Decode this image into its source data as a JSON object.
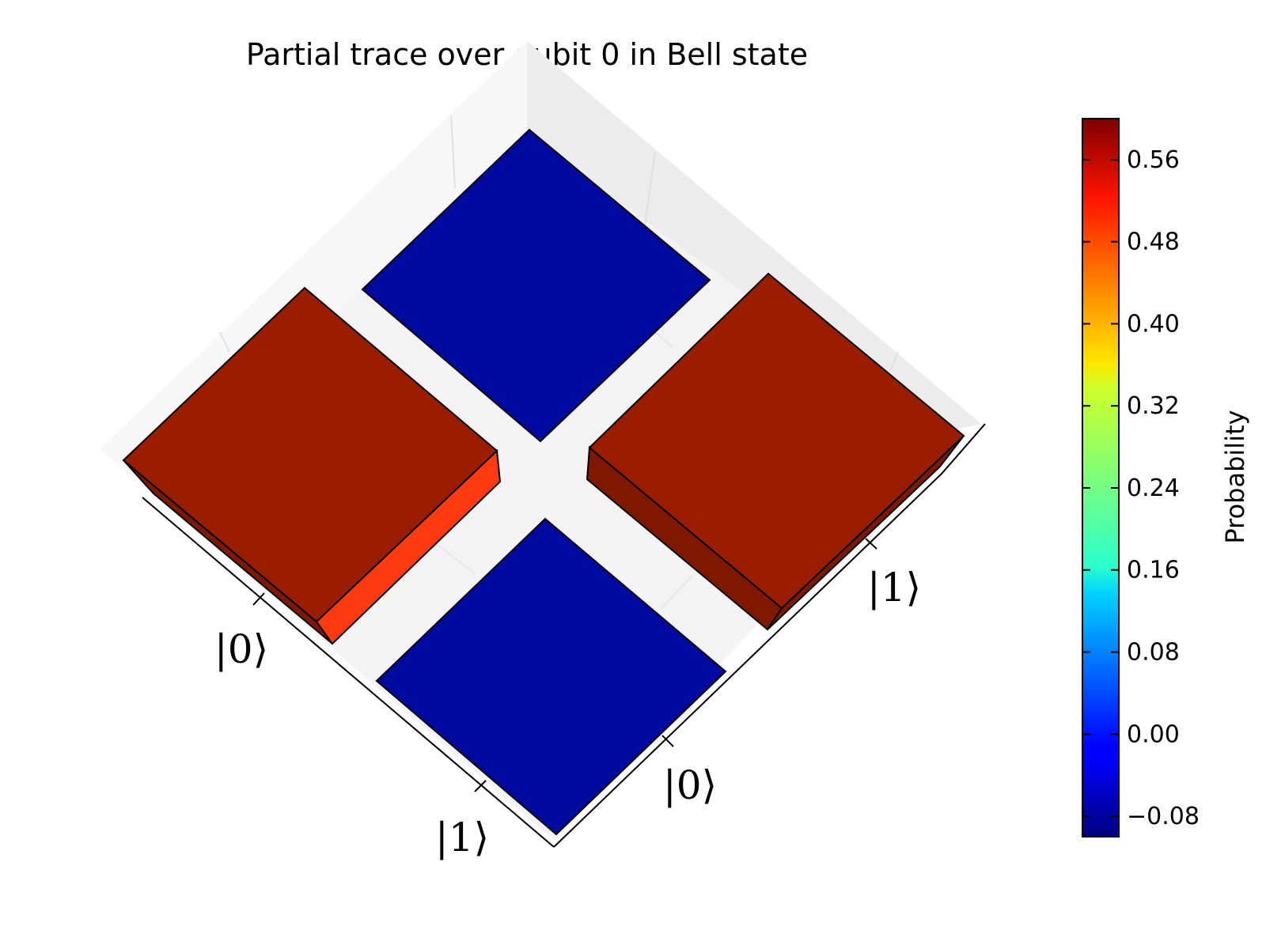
{
  "chart_data": {
    "type": "bar3d",
    "title": "Partial trace over qubit 0 in Bell state",
    "x_tick_labels": [
      "|0⟩",
      "|1⟩"
    ],
    "y_tick_labels": [
      "|0⟩",
      "|1⟩"
    ],
    "matrix": [
      {
        "row": "|0⟩",
        "col": "|0⟩",
        "value": 0.5
      },
      {
        "row": "|0⟩",
        "col": "|1⟩",
        "value": 0.0
      },
      {
        "row": "|1⟩",
        "col": "|0⟩",
        "value": 0.0
      },
      {
        "row": "|1⟩",
        "col": "|1⟩",
        "value": 0.5
      }
    ],
    "colorbar": {
      "label": "Probability",
      "colormap": "jet",
      "range": [
        -0.1,
        0.6
      ],
      "ticks": [
        "0.56",
        "0.48",
        "0.40",
        "0.32",
        "0.24",
        "0.16",
        "0.08",
        "0.00",
        "−0.08"
      ],
      "tick_values": [
        0.56,
        0.48,
        0.4,
        0.32,
        0.24,
        0.16,
        0.08,
        0.0,
        -0.08
      ]
    },
    "colors": {
      "high_bar_top": "#9b1d00",
      "high_bar_side": "#ff3a10",
      "high_bar_side_dark": "#801800",
      "zero_bar_top": "#000a9f",
      "pane": "#f3f3f3"
    }
  }
}
